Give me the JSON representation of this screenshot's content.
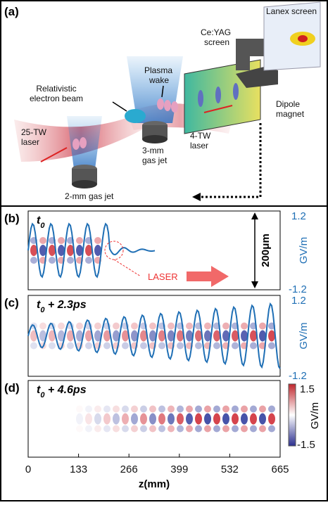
{
  "panel_a": {
    "label": "(a)",
    "annotations": {
      "lanex": "Lanex screen",
      "ceyag": [
        "Ce:YAG",
        "screen"
      ],
      "plasma": [
        "Plasma",
        "wake"
      ],
      "electron": [
        "Relativistic",
        "electron beam"
      ],
      "dipole": [
        "Dipole",
        "magnet"
      ],
      "laser25": [
        "25-TW",
        "laser"
      ],
      "laser4": [
        "4-TW",
        "laser"
      ],
      "jet3": [
        "3-mm",
        "gas jet"
      ],
      "jet2": "2-mm gas jet"
    }
  },
  "panel_b": {
    "label": "(b)",
    "time": [
      "t",
      "0",
      ""
    ],
    "y2ticks": [
      "1.2",
      "-1.2"
    ],
    "unit": "GV/m",
    "scale": "200μm",
    "laser": "LASER"
  },
  "panel_c": {
    "label": "(c)",
    "time": [
      "t",
      "0",
      " + 2.3ps"
    ],
    "y2ticks": [
      "1.2",
      "-1.2"
    ],
    "unit": "GV/m"
  },
  "panel_d": {
    "label": "(d)",
    "time": [
      "t",
      "0",
      " + 4.6ps"
    ],
    "colorbar": [
      "1.5",
      "-1.5"
    ],
    "unit": "GV/m"
  },
  "x_axis": {
    "label": "z(mm)",
    "xlim": [
      0,
      665
    ],
    "xticks": [
      0,
      133,
      266,
      399,
      532,
      665
    ]
  }
}
